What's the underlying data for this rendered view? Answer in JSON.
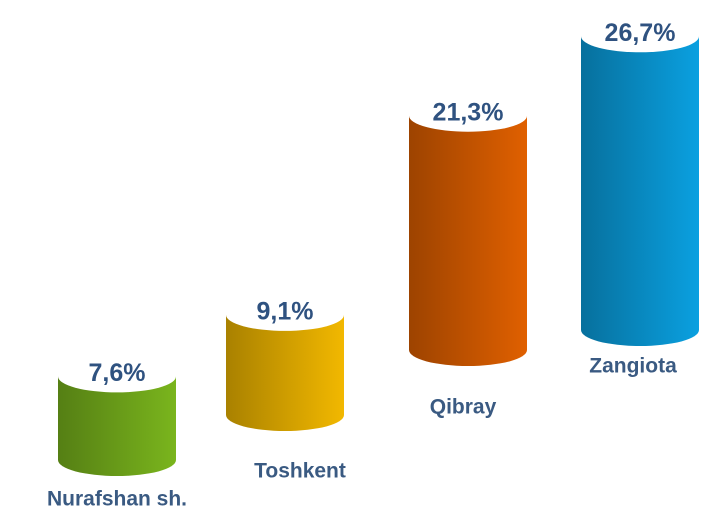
{
  "chart_data": {
    "type": "bar",
    "categories": [
      "Nurafshan sh.",
      "Toshkent",
      "Qibray",
      "Zangiota"
    ],
    "values": [
      7.6,
      9.1,
      21.3,
      26.7
    ],
    "value_labels": [
      "7,6%",
      "9,1%",
      "21,3%",
      "26,7%"
    ],
    "colors": [
      "#7ab51d",
      "#f2b800",
      "#e06000",
      "#0aa0e0"
    ]
  }
}
